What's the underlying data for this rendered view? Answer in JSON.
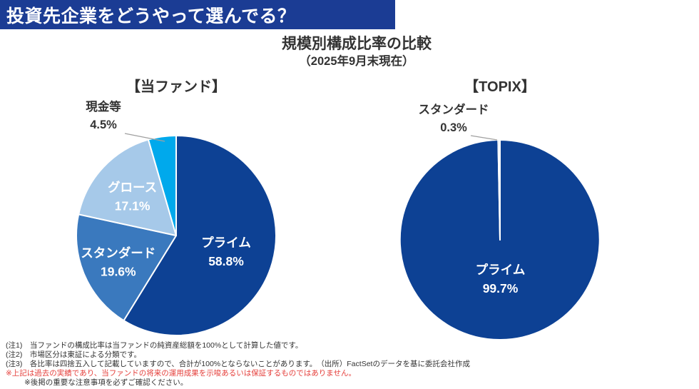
{
  "header": {
    "title": "投資先企業をどうやって選んでる？",
    "bg_color": "#1b3c94"
  },
  "main": {
    "title": "規模別構成比率の比較",
    "subtitle": "（2025年9月末現在）"
  },
  "chart_data": [
    {
      "type": "pie",
      "title": "【当ファンド】",
      "start": "12-o'clock, clockwise",
      "slices": [
        {
          "label": "プライム",
          "value": 58.8,
          "display": "58.8%",
          "color": "#0d4194",
          "label_in": true
        },
        {
          "label": "スタンダード",
          "value": 19.6,
          "display": "19.6%",
          "color": "#3a79be",
          "label_in": true
        },
        {
          "label": "グロース",
          "value": 17.1,
          "display": "17.1%",
          "color": "#a6c9e9",
          "label_in": true
        },
        {
          "label": "現金等",
          "value": 4.5,
          "display": "4.5%",
          "color": "#00a9ec",
          "label_in": false
        }
      ],
      "inner_label_color": "#ffffff"
    },
    {
      "type": "pie",
      "title": "【TOPIX】",
      "start": "12-o'clock, clockwise",
      "slices": [
        {
          "label": "プライム",
          "value": 99.7,
          "display": "99.7%",
          "color": "#0d4194",
          "label_in": true
        },
        {
          "label": "スタンダード",
          "value": 0.3,
          "display": "0.3%",
          "color": "#b9d2ea",
          "label_in": false
        }
      ],
      "inner_label_color": "#ffffff"
    }
  ],
  "footnotes": {
    "note1": "(注1)　当ファンドの構成比率は当ファンドの純資産総額を100%として計算した値です。",
    "note2": "(注2)　市場区分は東証による分類です。",
    "note3": "(注3)　各比率は四捨五入して記載していますので、合計が100%とならないことがあります。　（出所）FactSetのデータを基に委託会社作成",
    "warning": "※上記は過去の実績であり、当ファンドの将来の運用成果を示唆あるいは保証するものではありません。",
    "confirm": "※後掲の重要な注意事項を必ずご確認ください。"
  }
}
